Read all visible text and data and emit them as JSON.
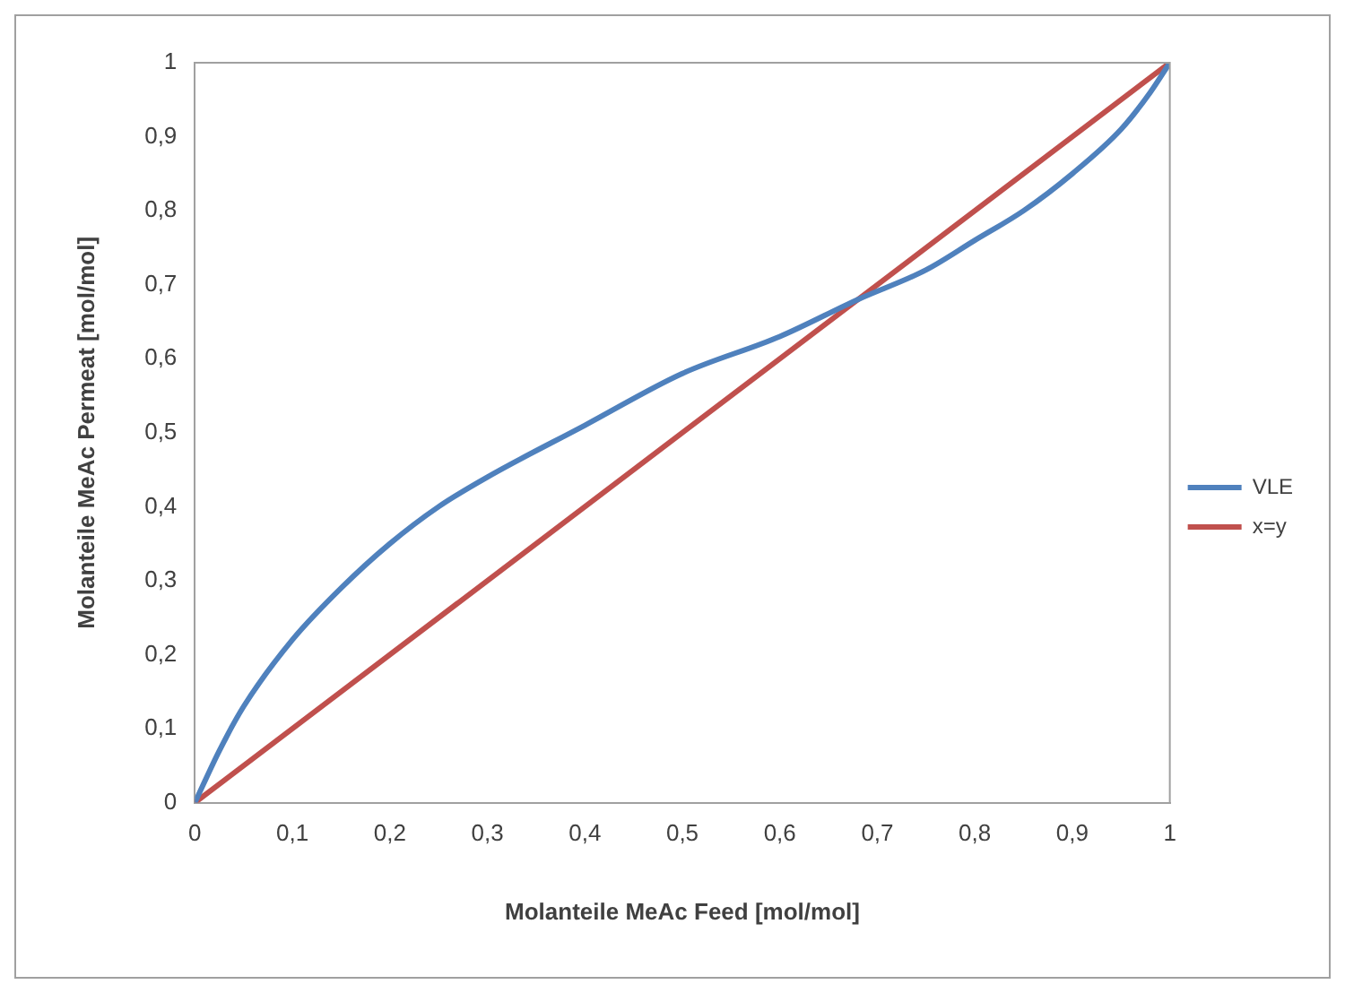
{
  "chart_data": {
    "type": "line",
    "xlabel": "Molanteile MeAc Feed [mol/mol]",
    "ylabel": "Molanteile MeAc Permeat [mol/mol]",
    "xlim": [
      0,
      1
    ],
    "xticks": [
      0,
      {
        "value": 0.1,
        "label": "0,1"
      },
      {
        "value": 0.2,
        "label": "0,2"
      },
      {
        "value": 0.3,
        "label": "0,3"
      },
      {
        "value": 0.4,
        "label": "0,4"
      },
      {
        "value": 0.5,
        "label": "0,5"
      },
      {
        "value": 0.6,
        "label": "0,6"
      },
      {
        "value": 0.7,
        "label": "0,7"
      },
      {
        "value": 0.8,
        "label": "0,8"
      },
      {
        "value": 0.9,
        "label": "0,9"
      },
      1
    ],
    "ylim": [
      0,
      1
    ],
    "yticks": [
      0,
      {
        "value": 0.1,
        "label": "0,1"
      },
      {
        "value": 0.2,
        "label": "0,2"
      },
      {
        "value": 0.3,
        "label": "0,3"
      },
      {
        "value": 0.4,
        "label": "0,4"
      },
      {
        "value": 0.5,
        "label": "0,5"
      },
      {
        "value": 0.6,
        "label": "0,6"
      },
      {
        "value": 0.7,
        "label": "0,7"
      },
      {
        "value": 0.8,
        "label": "0,8"
      },
      {
        "value": 0.9,
        "label": "0,9"
      },
      1
    ],
    "grid": false,
    "legend": "right",
    "marker": "none",
    "line_style": "solid",
    "series": [
      {
        "name": "VLE",
        "color": "#4f81bd",
        "x": [
          0,
          0.025,
          0.05,
          0.1,
          0.15,
          0.2,
          0.25,
          0.3,
          0.4,
          0.5,
          0.6,
          0.68,
          0.75,
          0.8,
          0.85,
          0.9,
          0.95,
          0.98,
          1
        ],
        "values": [
          0,
          0.07,
          0.13,
          0.22,
          0.29,
          0.35,
          0.4,
          0.44,
          0.51,
          0.58,
          0.63,
          0.68,
          0.72,
          0.76,
          0.8,
          0.85,
          0.91,
          0.96,
          1
        ]
      },
      {
        "name": "x=y",
        "color": "#c0504d",
        "x": [
          0,
          1
        ],
        "values": [
          0,
          1
        ]
      }
    ]
  }
}
